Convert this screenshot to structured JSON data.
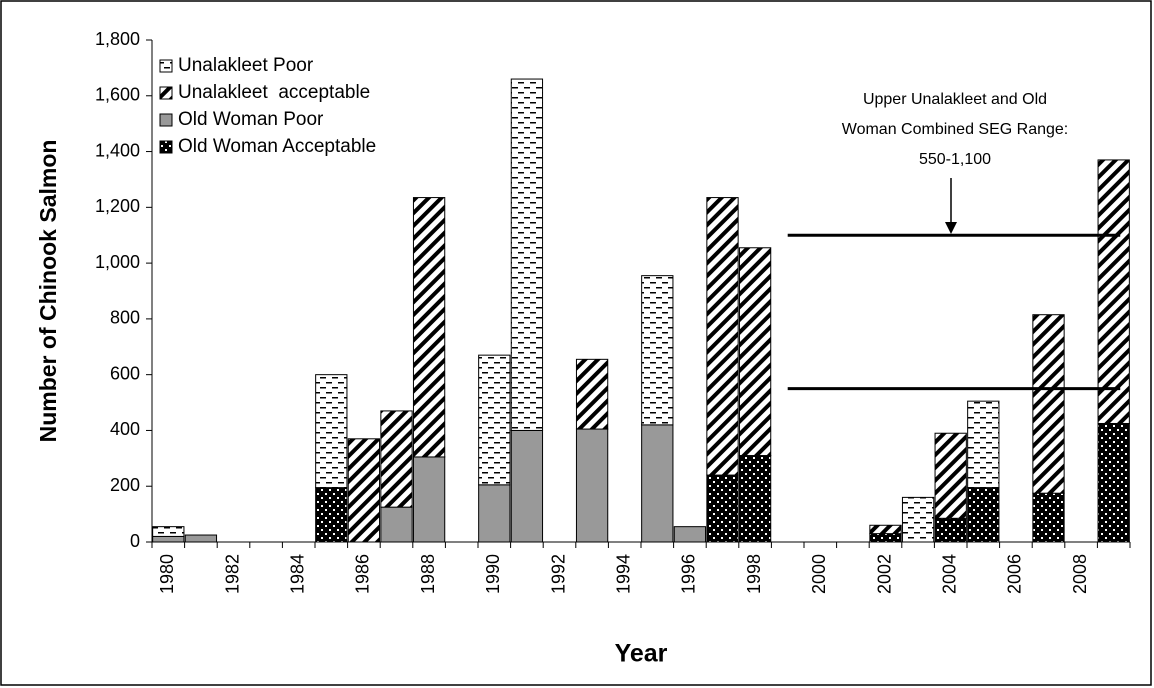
{
  "chart_data": {
    "type": "stacked_bar",
    "ylabel": "Number of Chinook Salmon",
    "xlabel": "Year",
    "categories": [
      "1980",
      null,
      "1982",
      null,
      "1984",
      null,
      "1986",
      null,
      "1988",
      null,
      "1990",
      null,
      "1992",
      null,
      "1994",
      null,
      "1996",
      null,
      "1998",
      null,
      "2000",
      null,
      "2002",
      null,
      "2004",
      null,
      "2006",
      null,
      "2008",
      null
    ],
    "series": [
      {
        "name": "Old Woman Acceptable",
        "color": "#000000",
        "pattern": "dots",
        "values": [
          null,
          null,
          null,
          null,
          null,
          195,
          null,
          null,
          null,
          null,
          null,
          null,
          null,
          null,
          null,
          null,
          null,
          240,
          310,
          null,
          null,
          null,
          30,
          null,
          85,
          195,
          null,
          175,
          null,
          425
        ]
      },
      {
        "name": "Old Woman Poor",
        "color": "#999999",
        "pattern": "solid",
        "values": [
          20,
          25,
          null,
          null,
          null,
          null,
          null,
          125,
          305,
          null,
          205,
          400,
          null,
          405,
          null,
          420,
          55,
          null,
          null,
          null,
          null,
          null,
          null,
          null,
          null,
          null,
          null,
          null,
          null,
          null
        ]
      },
      {
        "name": "Unalakleet  acceptable",
        "color": "#000000",
        "pattern": "hatch",
        "values": [
          null,
          null,
          null,
          null,
          null,
          null,
          370,
          345,
          930,
          null,
          null,
          null,
          null,
          250,
          null,
          null,
          null,
          995,
          745,
          null,
          null,
          null,
          30,
          null,
          305,
          null,
          null,
          640,
          null,
          945
        ]
      },
      {
        "name": "Unalakleet Poor",
        "color": "#000000",
        "pattern": "dashes",
        "values": [
          35,
          null,
          null,
          null,
          null,
          405,
          null,
          null,
          null,
          null,
          465,
          1260,
          null,
          null,
          null,
          535,
          null,
          null,
          null,
          null,
          null,
          null,
          null,
          160,
          null,
          310,
          null,
          null,
          null,
          null
        ]
      }
    ],
    "ylim": [
      0,
      1800
    ],
    "yticks": [
      0,
      200,
      400,
      600,
      800,
      {
        "value": 1000,
        "label": "1,000"
      },
      {
        "value": 1200,
        "label": "1,200"
      },
      {
        "value": 1400,
        "label": "1,400"
      },
      {
        "value": 1600,
        "label": "1,600"
      },
      {
        "value": 1800,
        "label": "1,800"
      }
    ],
    "reference_lines": [
      1100,
      550
    ],
    "annotation": [
      "Upper Unalakleet and Old",
      "Woman Combined SEG Range:",
      "550-1,100"
    ],
    "legend": "upper left"
  }
}
